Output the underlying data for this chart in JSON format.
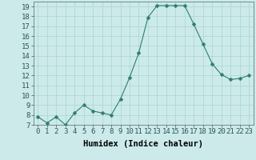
{
  "x": [
    0,
    1,
    2,
    3,
    4,
    5,
    6,
    7,
    8,
    9,
    10,
    11,
    12,
    13,
    14,
    15,
    16,
    17,
    18,
    19,
    20,
    21,
    22,
    23
  ],
  "y": [
    7.8,
    7.2,
    7.8,
    7.0,
    8.2,
    9.0,
    8.4,
    8.2,
    8.0,
    9.6,
    11.8,
    14.3,
    17.9,
    19.1,
    19.1,
    19.1,
    19.1,
    17.2,
    15.2,
    13.2,
    12.1,
    11.6,
    11.7,
    12.0
  ],
  "line_color": "#2e7d6e",
  "marker": "D",
  "marker_size": 2.5,
  "bg_color": "#cceaea",
  "grid_color": "#aad4d4",
  "xlabel": "Humidex (Indice chaleur)",
  "xlim": [
    -0.5,
    23.5
  ],
  "ylim": [
    7,
    19.5
  ],
  "yticks": [
    7,
    8,
    9,
    10,
    11,
    12,
    13,
    14,
    15,
    16,
    17,
    18,
    19
  ],
  "xticks": [
    0,
    1,
    2,
    3,
    4,
    5,
    6,
    7,
    8,
    9,
    10,
    11,
    12,
    13,
    14,
    15,
    16,
    17,
    18,
    19,
    20,
    21,
    22,
    23
  ],
  "xlabel_fontsize": 7.5,
  "tick_fontsize": 6.5
}
